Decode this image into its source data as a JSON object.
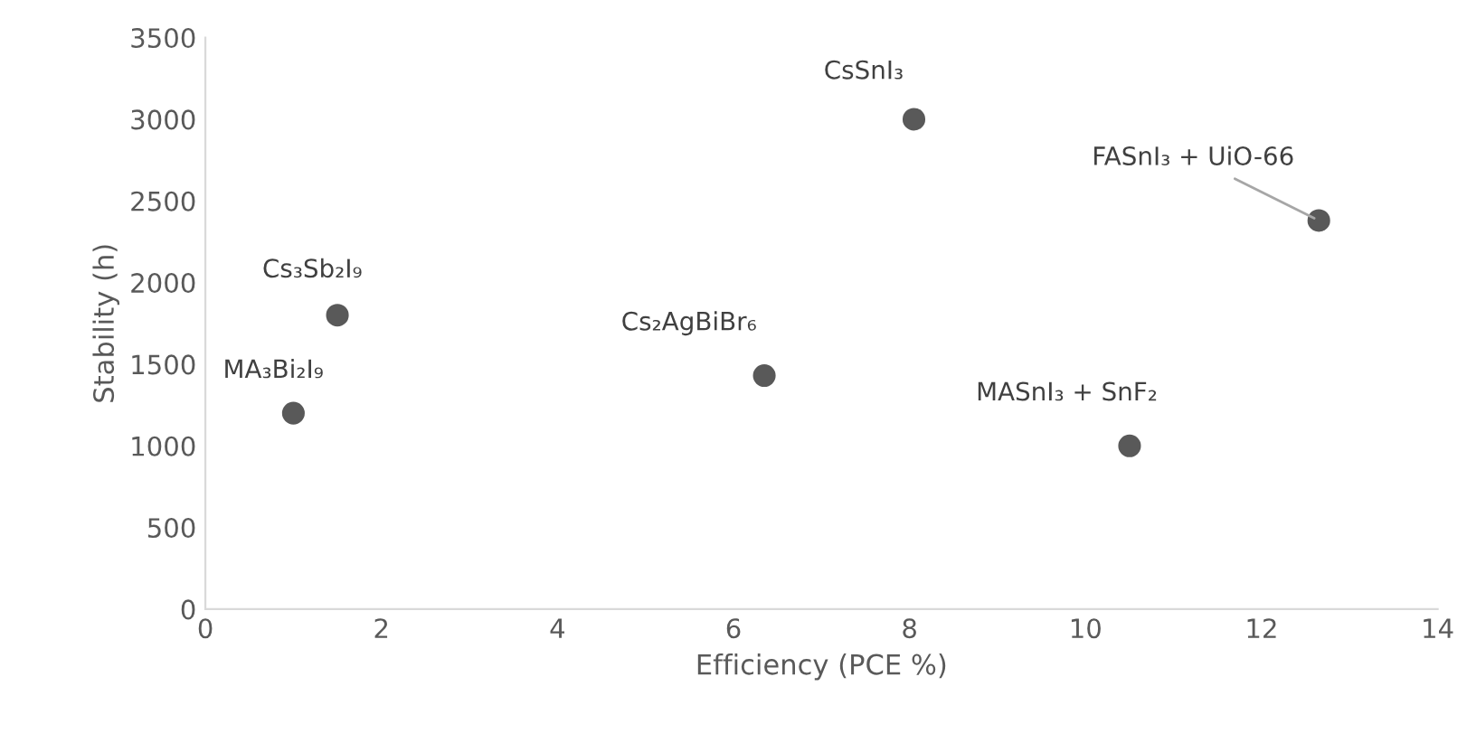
{
  "chart_data": {
    "type": "scatter",
    "xlabel": "Efficiency (PCE %)",
    "ylabel": "Stability (h)",
    "series": [
      {
        "color": "#595959",
        "x": [
          1.0,
          1.5,
          6.35,
          8.05,
          10.5,
          12.65
        ],
        "values": [
          1200,
          1800,
          1430,
          3000,
          1000,
          2380
        ]
      }
    ],
    "annotations": [
      {
        "text": "MA₃Bi₂I₉",
        "x": 1.0,
        "y": 1200
      },
      {
        "text": "Cs₃Sb₂I₉",
        "x": 1.5,
        "y": 1800
      },
      {
        "text": "Cs₂AgBiBr₆",
        "x": 6.35,
        "y": 1430
      },
      {
        "text": "CsSnI₃",
        "x": 8.05,
        "y": 3000
      },
      {
        "text": "MASnI₃ + SnF₂",
        "x": 10.5,
        "y": 1000
      },
      {
        "text": "FASnI₃ + UiO-66",
        "x": 12.65,
        "y": 2380
      }
    ],
    "xlim": [
      0,
      14
    ],
    "xticks": [
      0,
      2,
      4,
      6,
      8,
      10,
      12,
      14
    ],
    "ylim": [
      0,
      3500
    ],
    "yticks": [
      0,
      500,
      1000,
      1500,
      2000,
      2500,
      3000,
      3500
    ],
    "grid": false,
    "legend": false,
    "marker": "circle"
  }
}
